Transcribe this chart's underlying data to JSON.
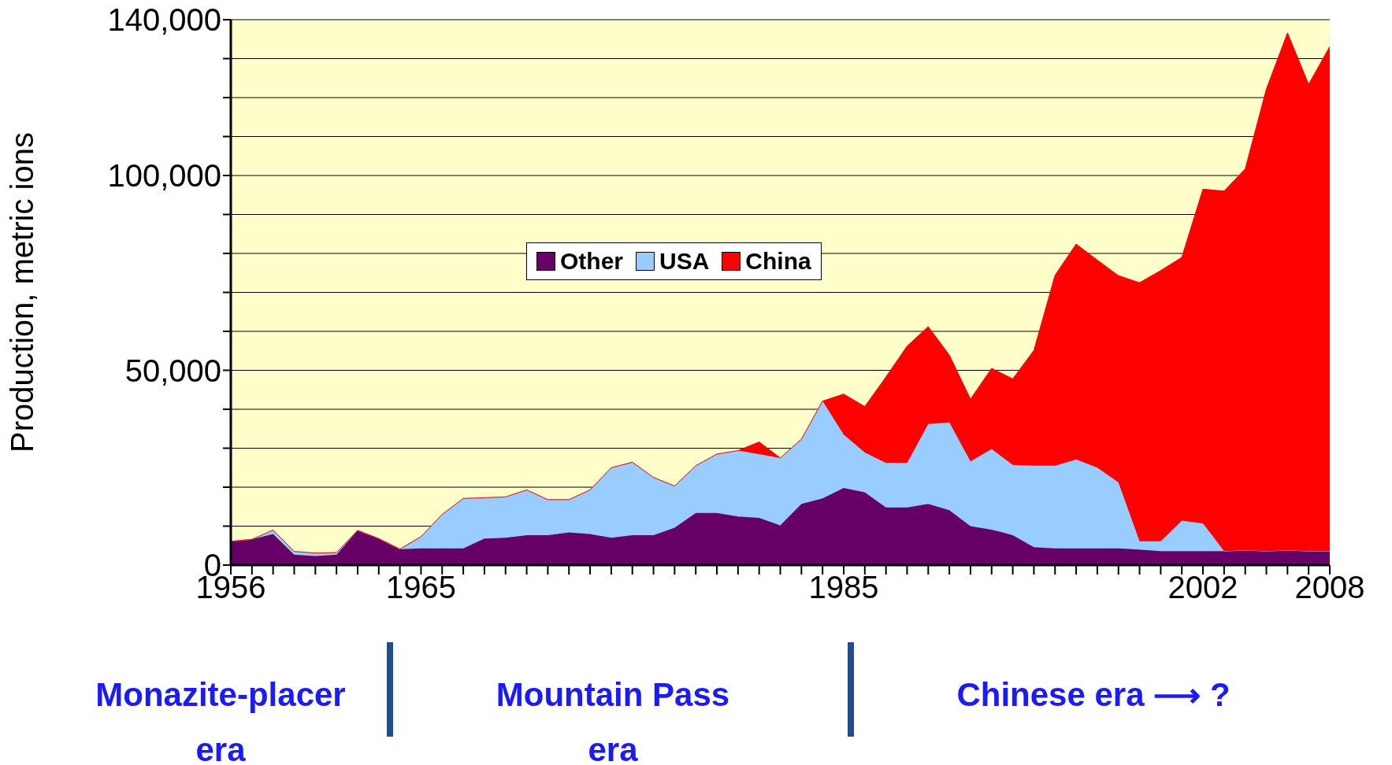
{
  "chart_data": {
    "type": "area",
    "stacked": true,
    "ylabel": "Production, metric ions",
    "x": [
      1956,
      1957,
      1958,
      1959,
      1960,
      1961,
      1962,
      1963,
      1964,
      1965,
      1966,
      1967,
      1968,
      1969,
      1970,
      1971,
      1972,
      1973,
      1974,
      1975,
      1976,
      1977,
      1978,
      1979,
      1980,
      1981,
      1982,
      1983,
      1984,
      1985,
      1986,
      1987,
      1988,
      1989,
      1990,
      1991,
      1992,
      1993,
      1994,
      1995,
      1996,
      1997,
      1998,
      1999,
      2000,
      2001,
      2002,
      2003,
      2004,
      2005,
      2006,
      2007,
      2008
    ],
    "series": [
      {
        "name": "Other",
        "color": "#660066",
        "values": [
          6100,
          6600,
          8000,
          2700,
          2300,
          2700,
          8900,
          6800,
          4100,
          4300,
          4300,
          4300,
          6800,
          7000,
          7700,
          7700,
          8400,
          8000,
          7000,
          7700,
          7700,
          9600,
          13400,
          13400,
          12500,
          12100,
          10200,
          15700,
          17100,
          19800,
          18700,
          14800,
          14800,
          15700,
          14100,
          10000,
          9100,
          7700,
          4600,
          4300,
          4300,
          4300,
          4300,
          4000,
          3600,
          3600,
          3600,
          3600,
          3800,
          3600,
          3800,
          3600,
          3600
        ]
      },
      {
        "name": "USA",
        "color": "#99ccff",
        "values": [
          0,
          0,
          1000,
          800,
          800,
          500,
          0,
          0,
          0,
          3000,
          8700,
          12800,
          10500,
          10500,
          11600,
          9100,
          8400,
          11300,
          18000,
          18700,
          14800,
          10700,
          12100,
          15100,
          16900,
          16400,
          17300,
          16600,
          25000,
          13700,
          10200,
          11400,
          11400,
          20500,
          22500,
          16600,
          20700,
          18000,
          20900,
          21200,
          22800,
          20700,
          16900,
          2100,
          2500,
          7800,
          7100,
          0,
          0,
          0,
          0,
          0,
          0
        ]
      },
      {
        "name": "China",
        "color": "#ff0000",
        "values": [
          0,
          0,
          0,
          0,
          0,
          0,
          0,
          0,
          0,
          0,
          0,
          0,
          0,
          0,
          0,
          0,
          0,
          0,
          0,
          0,
          0,
          0,
          0,
          0,
          0,
          3100,
          0,
          0,
          0,
          10400,
          11800,
          22100,
          30000,
          25000,
          17300,
          16000,
          20700,
          22100,
          29600,
          48900,
          55300,
          53300,
          53100,
          66400,
          69500,
          67600,
          85800,
          92400,
          97900,
          118600,
          132800,
          119800,
          129500
        ]
      }
    ],
    "xlim": [
      1956,
      2008
    ],
    "xticks": [
      1956,
      {
        "value": 1957,
        "label": null
      },
      {
        "value": 1958,
        "label": null
      },
      {
        "value": 1959,
        "label": null
      },
      {
        "value": 1960,
        "label": null
      },
      {
        "value": 1961,
        "label": null
      },
      {
        "value": 1962,
        "label": null
      },
      {
        "value": 1963,
        "label": null
      },
      {
        "value": 1964,
        "label": null
      },
      1965,
      {
        "value": 1966,
        "label": null
      },
      {
        "value": 1967,
        "label": null
      },
      {
        "value": 1968,
        "label": null
      },
      {
        "value": 1969,
        "label": null
      },
      {
        "value": 1970,
        "label": null
      },
      {
        "value": 1971,
        "label": null
      },
      {
        "value": 1972,
        "label": null
      },
      {
        "value": 1973,
        "label": null
      },
      {
        "value": 1974,
        "label": null
      },
      {
        "value": 1975,
        "label": null
      },
      {
        "value": 1976,
        "label": null
      },
      {
        "value": 1977,
        "label": null
      },
      {
        "value": 1978,
        "label": null
      },
      {
        "value": 1979,
        "label": null
      },
      {
        "value": 1980,
        "label": null
      },
      {
        "value": 1981,
        "label": null
      },
      {
        "value": 1982,
        "label": null
      },
      {
        "value": 1983,
        "label": null
      },
      {
        "value": 1984,
        "label": null
      },
      1985,
      {
        "value": 1986,
        "label": null
      },
      {
        "value": 1987,
        "label": null
      },
      {
        "value": 1988,
        "label": null
      },
      {
        "value": 1989,
        "label": null
      },
      {
        "value": 1990,
        "label": null
      },
      {
        "value": 1991,
        "label": null
      },
      {
        "value": 1992,
        "label": null
      },
      {
        "value": 1993,
        "label": null
      },
      {
        "value": 1994,
        "label": null
      },
      {
        "value": 1995,
        "label": null
      },
      {
        "value": 1996,
        "label": null
      },
      {
        "value": 1997,
        "label": null
      },
      {
        "value": 1998,
        "label": null
      },
      {
        "value": 1999,
        "label": null
      },
      {
        "value": 2000,
        "label": null
      },
      {
        "value": 2001,
        "label": null
      },
      2002,
      {
        "value": 2003,
        "label": null
      },
      {
        "value": 2004,
        "label": null
      },
      {
        "value": 2005,
        "label": null
      },
      {
        "value": 2006,
        "label": null
      },
      {
        "value": 2007,
        "label": null
      },
      2008
    ],
    "ylim": [
      0,
      140000
    ],
    "yticks": [
      {
        "value": 0,
        "label": "0"
      },
      {
        "value": 10000,
        "label": null
      },
      {
        "value": 20000,
        "label": null
      },
      {
        "value": 30000,
        "label": null
      },
      {
        "value": 40000,
        "label": null
      },
      {
        "value": 50000,
        "label": "50,000"
      },
      {
        "value": 60000,
        "label": null
      },
      {
        "value": 70000,
        "label": null
      },
      {
        "value": 80000,
        "label": null
      },
      {
        "value": 90000,
        "label": null
      },
      {
        "value": 100000,
        "label": "100,000"
      },
      {
        "value": 110000,
        "label": null
      },
      {
        "value": 120000,
        "label": null
      },
      {
        "value": 130000,
        "label": null
      },
      {
        "value": 140000,
        "label": "140,000"
      }
    ],
    "grid": "y",
    "legend": "top",
    "annotations": [
      "Monazite-placer era",
      "Mountain Pass era",
      "Chinese era ⟶ ?"
    ]
  }
}
